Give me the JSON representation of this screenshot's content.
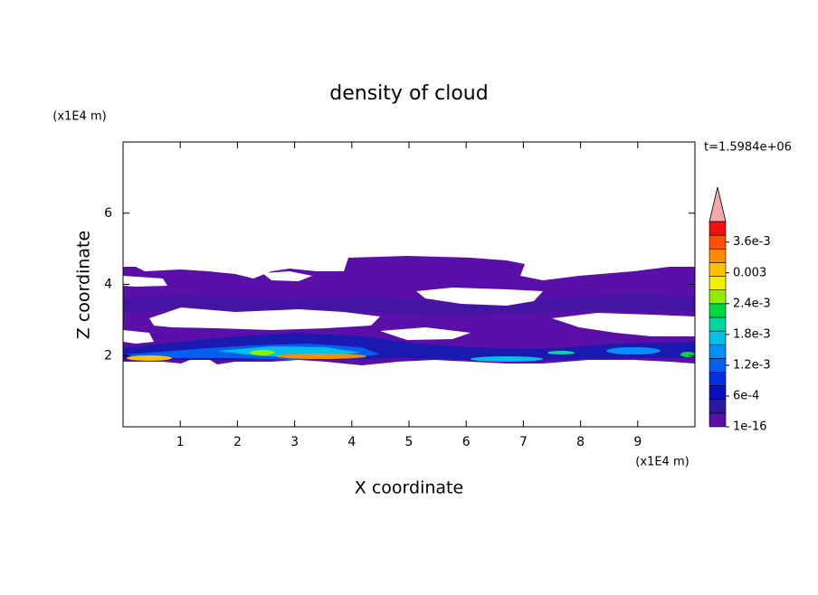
{
  "chart_data": {
    "type": "contour",
    "title": "density of cloud",
    "x_label": "X coordinate",
    "y_label": "Z coordinate",
    "x_unit": "(x1E4 m)",
    "y_unit": "(x1E4 m)",
    "annotation": "t=1.5984e+06",
    "xlim": [
      0,
      10
    ],
    "ylim": [
      0,
      8
    ],
    "xticks": [
      1,
      2,
      3,
      4,
      5,
      6,
      7,
      8,
      9
    ],
    "yticks": [
      2,
      4,
      6
    ],
    "colorbar": {
      "clim": [
        1e-16,
        0.004
      ],
      "ticks": [
        {
          "value": 1e-16,
          "label": "1e-16"
        },
        {
          "value": 0.0006,
          "label": "6e-4"
        },
        {
          "value": 0.0012,
          "label": "1.2e-3"
        },
        {
          "value": 0.0018,
          "label": "1.8e-3"
        },
        {
          "value": 0.0024,
          "label": "2.4e-3"
        },
        0.003,
        {
          "value": 0.0036,
          "label": "3.6e-3"
        }
      ],
      "colors": [
        "#5a10a8",
        "#2a1aa0",
        "#0a10c0",
        "#0030e0",
        "#0060f0",
        "#0090f8",
        "#00c0e8",
        "#00d8a0",
        "#00d840",
        "#90ec00",
        "#f0f000",
        "#ffc000",
        "#ff8c00",
        "#ff5000",
        "#f01010"
      ],
      "extend_color": "#f4a8a8"
    }
  }
}
